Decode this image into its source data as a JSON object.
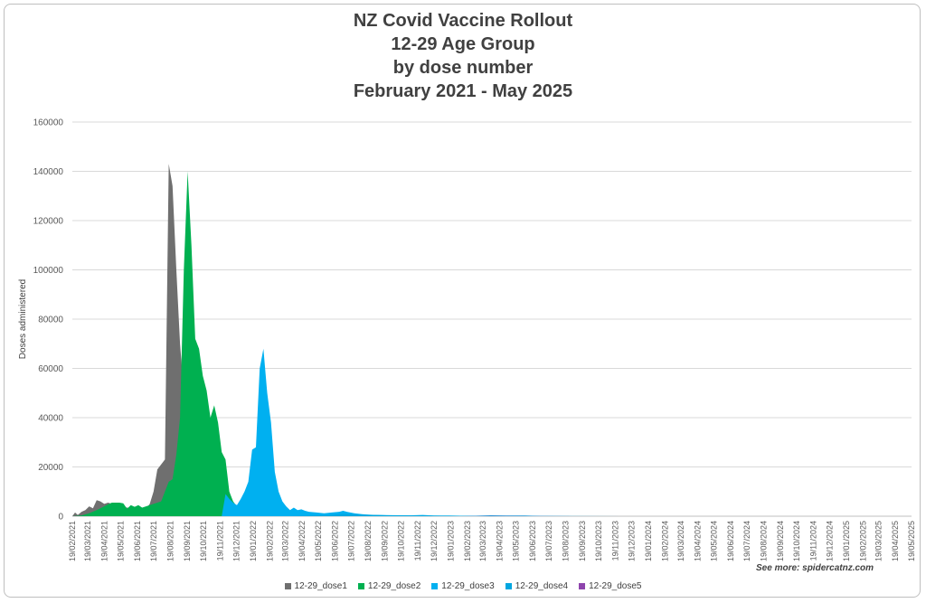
{
  "chart_data": {
    "type": "area",
    "title_lines": [
      "NZ Covid Vaccine Rollout",
      "12-29 Age Group",
      "by dose number",
      "February 2021 - May 2025"
    ],
    "ylabel": "Doses administered",
    "xlabel": "",
    "ylim": [
      0,
      160000
    ],
    "y_ticks": [
      "0",
      "20000",
      "40000",
      "60000",
      "80000",
      "100000",
      "120000",
      "140000",
      "160000"
    ],
    "x_ticks": [
      "19/02/2021",
      "19/03/2021",
      "19/04/2021",
      "19/05/2021",
      "19/06/2021",
      "19/07/2021",
      "19/08/2021",
      "19/09/2021",
      "19/10/2021",
      "19/11/2021",
      "19/12/2021",
      "19/01/2022",
      "19/02/2022",
      "19/03/2022",
      "19/04/2022",
      "19/05/2022",
      "19/06/2022",
      "19/07/2022",
      "19/08/2022",
      "19/09/2022",
      "19/10/2022",
      "19/11/2022",
      "19/12/2022",
      "19/01/2023",
      "19/02/2023",
      "19/03/2023",
      "19/04/2023",
      "19/05/2023",
      "19/06/2023",
      "19/07/2023",
      "19/08/2023",
      "19/09/2023",
      "19/10/2023",
      "19/11/2023",
      "19/12/2023",
      "19/01/2024",
      "19/02/2024",
      "19/03/2024",
      "19/04/2024",
      "19/05/2024",
      "19/06/2024",
      "19/07/2024",
      "19/08/2024",
      "19/09/2024",
      "19/10/2024",
      "19/11/2024",
      "19/12/2024",
      "19/01/2025",
      "19/02/2025",
      "19/03/2025",
      "19/04/2025",
      "19/05/2025"
    ],
    "grid": true,
    "legend_position": "bottom",
    "series": [
      {
        "name": "12-29_dose1",
        "color": "#6f6f6f",
        "points": [
          [
            "2021-02-19",
            0
          ],
          [
            "2021-02-24",
            1500
          ],
          [
            "2021-03-01",
            500
          ],
          [
            "2021-03-08",
            1800
          ],
          [
            "2021-03-15",
            2500
          ],
          [
            "2021-03-22",
            4000
          ],
          [
            "2021-03-29",
            3200
          ],
          [
            "2021-04-05",
            6500
          ],
          [
            "2021-04-12",
            6000
          ],
          [
            "2021-04-19",
            5000
          ],
          [
            "2021-04-26",
            5500
          ],
          [
            "2021-05-03",
            5000
          ],
          [
            "2021-05-10",
            4800
          ],
          [
            "2021-05-17",
            4200
          ],
          [
            "2021-05-24",
            3800
          ],
          [
            "2021-05-31",
            3500
          ],
          [
            "2021-06-07",
            3300
          ],
          [
            "2021-06-14",
            3800
          ],
          [
            "2021-06-21",
            3200
          ],
          [
            "2021-06-28",
            3000
          ],
          [
            "2021-07-05",
            3000
          ],
          [
            "2021-07-12",
            5000
          ],
          [
            "2021-07-19",
            10000
          ],
          [
            "2021-07-26",
            19000
          ],
          [
            "2021-08-02",
            21000
          ],
          [
            "2021-08-09",
            23000
          ],
          [
            "2021-08-16",
            143000
          ],
          [
            "2021-08-23",
            134000
          ],
          [
            "2021-08-30",
            100000
          ],
          [
            "2021-09-06",
            70000
          ],
          [
            "2021-09-13",
            50000
          ],
          [
            "2021-09-20",
            30000
          ],
          [
            "2021-09-27",
            22000
          ],
          [
            "2021-10-04",
            17000
          ],
          [
            "2021-10-11",
            13000
          ],
          [
            "2021-10-18",
            10000
          ],
          [
            "2021-10-25",
            8000
          ],
          [
            "2021-11-01",
            6000
          ],
          [
            "2021-11-08",
            4500
          ],
          [
            "2021-11-15",
            3500
          ],
          [
            "2021-11-22",
            2500
          ],
          [
            "2021-11-29",
            2000
          ],
          [
            "2021-12-06",
            1500
          ],
          [
            "2021-12-13",
            1200
          ],
          [
            "2021-12-20",
            800
          ],
          [
            "2021-12-27",
            500
          ],
          [
            "2022-01-03",
            400
          ],
          [
            "2022-01-17",
            300
          ],
          [
            "2022-02-14",
            200
          ],
          [
            "2022-03-14",
            150
          ],
          [
            "2022-05-02",
            100
          ],
          [
            "2022-07-04",
            50
          ],
          [
            "2022-10-03",
            20
          ],
          [
            "2023-01-02",
            0
          ]
        ]
      },
      {
        "name": "12-29_dose2",
        "color": "#00b050",
        "points": [
          [
            "2021-02-19",
            0
          ],
          [
            "2021-03-08",
            300
          ],
          [
            "2021-03-22",
            1200
          ],
          [
            "2021-04-05",
            2500
          ],
          [
            "2021-04-19",
            4000
          ],
          [
            "2021-04-26",
            4800
          ],
          [
            "2021-05-03",
            5500
          ],
          [
            "2021-05-10",
            5500
          ],
          [
            "2021-05-17",
            5500
          ],
          [
            "2021-05-24",
            5200
          ],
          [
            "2021-05-31",
            3000
          ],
          [
            "2021-06-07",
            4500
          ],
          [
            "2021-06-14",
            3800
          ],
          [
            "2021-06-21",
            4500
          ],
          [
            "2021-06-28",
            3500
          ],
          [
            "2021-07-05",
            4000
          ],
          [
            "2021-07-12",
            4500
          ],
          [
            "2021-07-19",
            5000
          ],
          [
            "2021-07-26",
            5500
          ],
          [
            "2021-08-02",
            6000
          ],
          [
            "2021-08-09",
            10000
          ],
          [
            "2021-08-16",
            14000
          ],
          [
            "2021-08-23",
            15000
          ],
          [
            "2021-08-30",
            25000
          ],
          [
            "2021-09-06",
            40000
          ],
          [
            "2021-09-13",
            100000
          ],
          [
            "2021-09-20",
            140000
          ],
          [
            "2021-09-27",
            110000
          ],
          [
            "2021-10-04",
            72000
          ],
          [
            "2021-10-11",
            68000
          ],
          [
            "2021-10-18",
            57000
          ],
          [
            "2021-10-25",
            51000
          ],
          [
            "2021-11-01",
            40000
          ],
          [
            "2021-11-08",
            45000
          ],
          [
            "2021-11-15",
            38000
          ],
          [
            "2021-11-22",
            26000
          ],
          [
            "2021-11-29",
            23000
          ],
          [
            "2021-12-06",
            10000
          ],
          [
            "2021-12-13",
            6000
          ],
          [
            "2021-12-20",
            4000
          ],
          [
            "2021-12-27",
            3000
          ],
          [
            "2022-01-03",
            2500
          ],
          [
            "2022-01-17",
            1800
          ],
          [
            "2022-02-14",
            1200
          ],
          [
            "2022-03-14",
            800
          ],
          [
            "2022-04-11",
            600
          ],
          [
            "2022-05-09",
            400
          ],
          [
            "2022-06-06",
            300
          ],
          [
            "2022-07-04",
            200
          ],
          [
            "2022-09-05",
            100
          ],
          [
            "2022-11-07",
            50
          ],
          [
            "2023-02-06",
            20
          ],
          [
            "2023-05-01",
            0
          ]
        ]
      },
      {
        "name": "12-29_dose3",
        "color": "#00b0f0",
        "points": [
          [
            "2021-11-22",
            0
          ],
          [
            "2021-11-29",
            9000
          ],
          [
            "2021-12-06",
            7000
          ],
          [
            "2021-12-13",
            5500
          ],
          [
            "2021-12-20",
            4500
          ],
          [
            "2021-12-27",
            7000
          ],
          [
            "2022-01-03",
            10000
          ],
          [
            "2022-01-10",
            14000
          ],
          [
            "2022-01-17",
            27000
          ],
          [
            "2022-01-24",
            28000
          ],
          [
            "2022-01-31",
            60000
          ],
          [
            "2022-02-07",
            68000
          ],
          [
            "2022-02-14",
            50000
          ],
          [
            "2022-02-21",
            38000
          ],
          [
            "2022-02-28",
            18000
          ],
          [
            "2022-03-07",
            10000
          ],
          [
            "2022-03-14",
            6000
          ],
          [
            "2022-03-21",
            4000
          ],
          [
            "2022-03-28",
            2500
          ],
          [
            "2022-04-04",
            3500
          ],
          [
            "2022-04-11",
            2500
          ],
          [
            "2022-04-18",
            2800
          ],
          [
            "2022-04-25",
            2200
          ],
          [
            "2022-05-02",
            1800
          ],
          [
            "2022-05-16",
            1500
          ],
          [
            "2022-05-30",
            1200
          ],
          [
            "2022-06-13",
            1500
          ],
          [
            "2022-06-27",
            1800
          ],
          [
            "2022-07-04",
            2200
          ],
          [
            "2022-07-11",
            1800
          ],
          [
            "2022-07-25",
            1200
          ],
          [
            "2022-08-08",
            800
          ],
          [
            "2022-08-22",
            600
          ],
          [
            "2022-09-05",
            500
          ],
          [
            "2022-10-03",
            400
          ],
          [
            "2022-11-07",
            350
          ],
          [
            "2022-11-28",
            500
          ],
          [
            "2022-12-19",
            300
          ],
          [
            "2023-01-16",
            250
          ],
          [
            "2023-02-13",
            150
          ],
          [
            "2023-04-03",
            200
          ],
          [
            "2023-05-22",
            100
          ],
          [
            "2023-07-03",
            30
          ],
          [
            "2023-09-04",
            0
          ]
        ]
      },
      {
        "name": "12-29_dose4",
        "color": "#00a6e0",
        "points": [
          [
            "2022-03-28",
            0
          ],
          [
            "2022-04-25",
            200
          ],
          [
            "2022-06-06",
            400
          ],
          [
            "2022-07-04",
            900
          ],
          [
            "2022-08-01",
            700
          ],
          [
            "2022-09-05",
            500
          ],
          [
            "2022-10-03",
            300
          ],
          [
            "2022-11-07",
            250
          ],
          [
            "2022-12-05",
            300
          ],
          [
            "2023-01-02",
            200
          ],
          [
            "2023-02-06",
            150
          ],
          [
            "2023-03-06",
            200
          ],
          [
            "2023-04-03",
            350
          ],
          [
            "2023-05-01",
            300
          ],
          [
            "2023-06-05",
            250
          ],
          [
            "2023-07-03",
            80
          ],
          [
            "2023-09-04",
            30
          ],
          [
            "2023-12-04",
            0
          ]
        ]
      },
      {
        "name": "12-29_dose5",
        "color": "#8e44ad",
        "points": [
          [
            "2023-02-06",
            0
          ],
          [
            "2023-04-03",
            60
          ],
          [
            "2023-06-05",
            40
          ],
          [
            "2023-09-04",
            10
          ],
          [
            "2024-01-01",
            0
          ]
        ]
      }
    ],
    "note": "See more: spidercatnz.com"
  }
}
